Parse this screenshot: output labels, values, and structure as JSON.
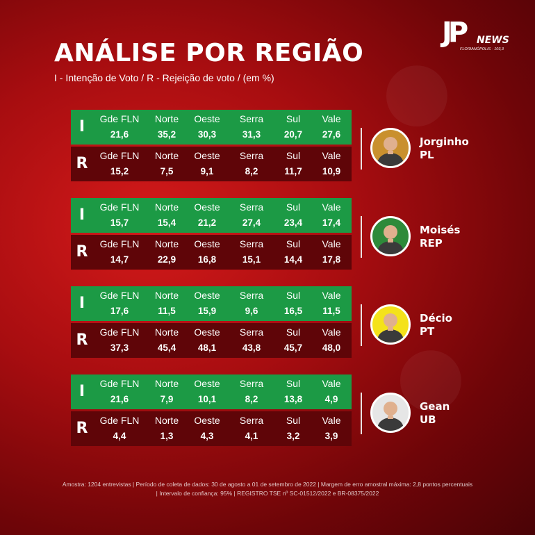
{
  "brand": {
    "logo_mark": "JP",
    "logo_word": "NEWS",
    "logo_city": "FLORIANÓPOLIS · 103,3"
  },
  "header": {
    "title": "ANÁLISE POR REGIÃO",
    "subtitle": "I - Intenção de Voto / R - Rejeição de voto / (em %)"
  },
  "regions": [
    "Gde FLN",
    "Norte",
    "Oeste",
    "Serra",
    "Sul",
    "Vale"
  ],
  "row_letters": {
    "intencao": "I",
    "rejeicao": "R"
  },
  "candidates": [
    {
      "name": "Jorginho",
      "party": "PL",
      "avatar_bg": "#c9902e",
      "intencao": [
        "21,6",
        "35,2",
        "30,3",
        "31,3",
        "20,7",
        "27,6"
      ],
      "rejeicao": [
        "15,2",
        "7,5",
        "9,1",
        "8,2",
        "11,7",
        "10,9"
      ]
    },
    {
      "name": "Moisés",
      "party": "REP",
      "avatar_bg": "#2e8a3a",
      "intencao": [
        "15,7",
        "15,4",
        "21,2",
        "27,4",
        "23,4",
        "17,4"
      ],
      "rejeicao": [
        "14,7",
        "22,9",
        "16,8",
        "15,1",
        "14,4",
        "17,8"
      ]
    },
    {
      "name": "Décio",
      "party": "PT",
      "avatar_bg": "#f4e21a",
      "intencao": [
        "17,6",
        "11,5",
        "15,9",
        "9,6",
        "16,5",
        "11,5"
      ],
      "rejeicao": [
        "37,3",
        "45,4",
        "48,1",
        "43,8",
        "45,7",
        "48,0"
      ]
    },
    {
      "name": "Gean",
      "party": "UB",
      "avatar_bg": "#e6e6e6",
      "intencao": [
        "21,6",
        "7,9",
        "10,1",
        "8,2",
        "13,8",
        "4,9"
      ],
      "rejeicao": [
        "4,4",
        "1,3",
        "4,3",
        "4,1",
        "3,2",
        "3,9"
      ]
    }
  ],
  "footer": {
    "line1": "Amostra: 1204 entrevistas | Período de coleta de dados: 30 de agosto a 01 de setembro de 2022 | Margem de erro amostral máxima: 2,8 pontos percentuais",
    "line2": "| Intervalo de confiança: 95% | REGISTRO TSE nº SC-01512/2022 e BR-08375/2022"
  },
  "colors": {
    "intencao_row": "#1c9a45",
    "rejeicao_row": "#5f0508",
    "background": "#a70d10"
  }
}
